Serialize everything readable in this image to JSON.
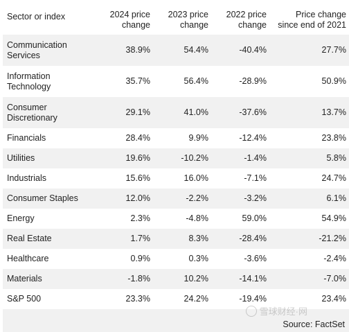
{
  "headers": [
    "Sector or index",
    "2024 price change",
    "2023 price change",
    "2022 price change",
    "Price change since end of 2021"
  ],
  "rows": [
    {
      "sector": "Communication Services",
      "c2024": "38.9%",
      "c2023": "54.4%",
      "c2022": "-40.4%",
      "since2021": "27.7%"
    },
    {
      "sector": "Information Technology",
      "c2024": "35.7%",
      "c2023": "56.4%",
      "c2022": "-28.9%",
      "since2021": "50.9%"
    },
    {
      "sector": "Consumer Discretionary",
      "c2024": "29.1%",
      "c2023": "41.0%",
      "c2022": "-37.6%",
      "since2021": "13.7%"
    },
    {
      "sector": "Financials",
      "c2024": "28.4%",
      "c2023": "9.9%",
      "c2022": "-12.4%",
      "since2021": "23.8%"
    },
    {
      "sector": "Utilities",
      "c2024": "19.6%",
      "c2023": "-10.2%",
      "c2022": "-1.4%",
      "since2021": "5.8%"
    },
    {
      "sector": "Industrials",
      "c2024": "15.6%",
      "c2023": "16.0%",
      "c2022": "-7.1%",
      "since2021": "24.7%"
    },
    {
      "sector": "Consumer Staples",
      "c2024": "12.0%",
      "c2023": "-2.2%",
      "c2022": "-3.2%",
      "since2021": "6.1%"
    },
    {
      "sector": "Energy",
      "c2024": "2.3%",
      "c2023": "-4.8%",
      "c2022": "59.0%",
      "since2021": "54.9%"
    },
    {
      "sector": "Real Estate",
      "c2024": "1.7%",
      "c2023": "8.3%",
      "c2022": "-28.4%",
      "since2021": "-21.2%"
    },
    {
      "sector": "Healthcare",
      "c2024": "0.9%",
      "c2023": "0.3%",
      "c2022": "-3.6%",
      "since2021": "-2.4%"
    },
    {
      "sector": "Materials",
      "c2024": "-1.8%",
      "c2023": "10.2%",
      "c2022": "-14.1%",
      "since2021": "-7.0%"
    },
    {
      "sector": "S&P 500",
      "c2024": "23.3%",
      "c2023": "24.2%",
      "c2022": "-19.4%",
      "since2021": "23.4%"
    }
  ],
  "source": "Source: FactSet",
  "watermark": "雪球财经·网"
}
